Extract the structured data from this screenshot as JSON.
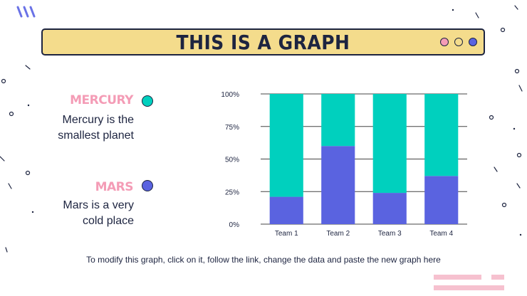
{
  "title": "THIS IS A GRAPH",
  "colors": {
    "teal": "#00d0be",
    "indigo": "#5a63e0",
    "pink": "#f49cb6",
    "yellow": "#f4dc8c",
    "navy": "#1d2440"
  },
  "window_dots": [
    {
      "name": "pink-dot",
      "color": "#f49cb6"
    },
    {
      "name": "yellow-dot",
      "color": "#f4dc8c"
    },
    {
      "name": "indigo-dot",
      "color": "#5a63e0"
    }
  ],
  "legend": [
    {
      "name": "MERCURY",
      "description": [
        "Mercury is the",
        "smallest planet"
      ],
      "color": "#00d0be"
    },
    {
      "name": "MARS",
      "description": [
        "Mars is a very",
        "cold place"
      ],
      "color": "#5a63e0"
    }
  ],
  "footer_note": "To modify this graph, click on it, follow the link, change the data and paste the new graph here",
  "chart_data": {
    "type": "bar",
    "stacked": true,
    "percent": true,
    "categories": [
      "Team 1",
      "Team 2",
      "Team 3",
      "Team 4"
    ],
    "series": [
      {
        "name": "MARS",
        "color": "#5a63e0",
        "values": [
          21,
          60,
          24,
          37
        ]
      },
      {
        "name": "MERCURY",
        "color": "#00d0be",
        "values": [
          79,
          40,
          76,
          63
        ]
      }
    ],
    "ylim": [
      0,
      100
    ],
    "yticks": [
      "0%",
      "25%",
      "50%",
      "75%",
      "100%"
    ],
    "grid": true,
    "legend": "left"
  }
}
